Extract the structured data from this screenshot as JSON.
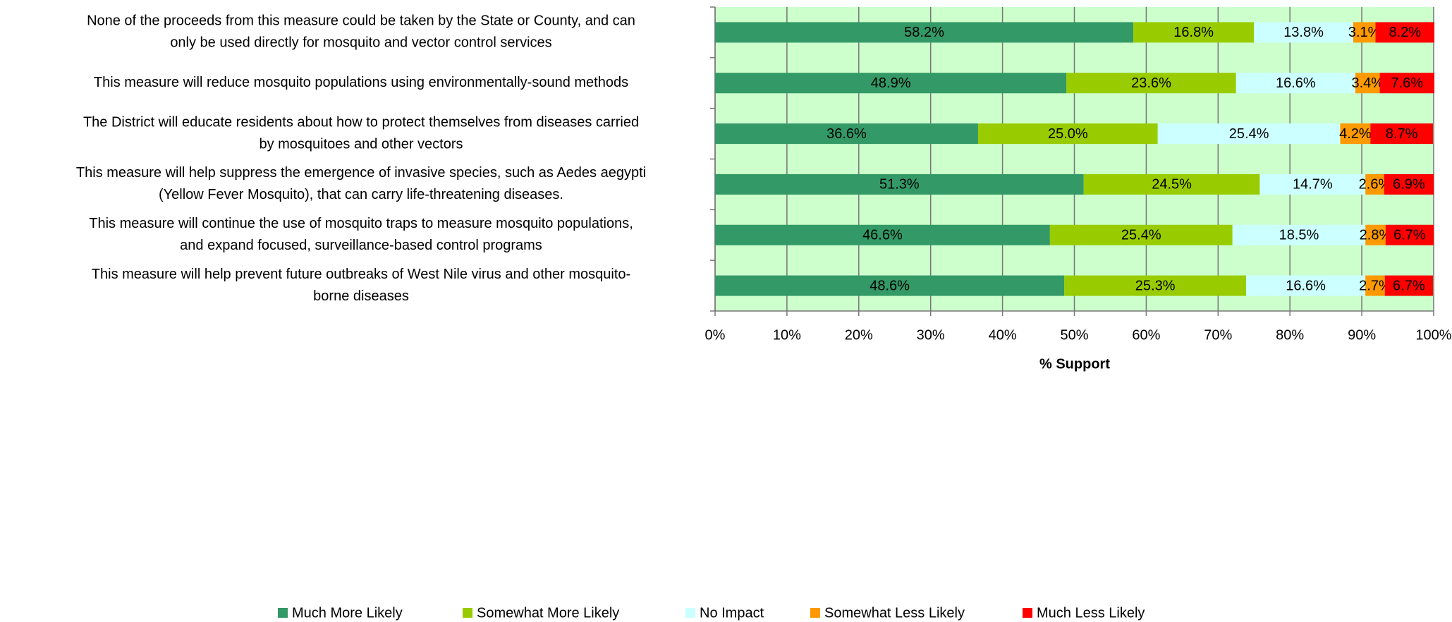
{
  "chart_data": {
    "type": "stacked_bar_horizontal",
    "categories": [
      [
        "None of the proceeds from this measure could be taken by the State or County, and can",
        "only be used directly for mosquito and vector control services"
      ],
      [
        "This measure will reduce mosquito populations using environmentally-sound methods"
      ],
      [
        "The District will educate residents about how to protect themselves from diseases carried",
        "by mosquitoes and other vectors"
      ],
      [
        "This measure will help suppress the emergence of invasive species, such as Aedes aegypti",
        "(Yellow Fever Mosquito), that can carry life-threatening diseases."
      ],
      [
        "This measure will continue the use of mosquito traps to measure mosquito populations,",
        "and expand focused, surveillance-based control programs"
      ],
      [
        "This measure will help prevent future outbreaks of West Nile virus and other mosquito-",
        "borne diseases"
      ]
    ],
    "series": [
      {
        "name": "Much More Likely",
        "color": "#339966",
        "values": [
          58.2,
          48.9,
          36.6,
          51.3,
          46.6,
          48.6
        ],
        "value_labels": [
          "58.2%",
          "48.9%",
          "36.6%",
          "51.3%",
          "46.6%",
          "48.6%"
        ]
      },
      {
        "name": "Somewhat More Likely",
        "color": "#99cc00",
        "values": [
          16.8,
          23.6,
          25.0,
          24.5,
          25.4,
          25.3
        ],
        "value_labels": [
          "16.8%",
          "23.6%",
          "25.0%",
          "24.5%",
          "25.4%",
          "25.3%"
        ]
      },
      {
        "name": "No Impact",
        "color": "#ccffff",
        "values": [
          13.8,
          16.6,
          25.4,
          14.7,
          18.5,
          16.6
        ],
        "value_labels": [
          "13.8%",
          "16.6%",
          "25.4%",
          "14.7%",
          "18.5%",
          "16.6%"
        ]
      },
      {
        "name": "Somewhat Less Likely",
        "color": "#ff9900",
        "values": [
          3.1,
          3.4,
          4.2,
          2.6,
          2.8,
          2.7
        ],
        "value_labels": [
          "3.1%",
          "3.4%",
          "4.2%",
          "2.6%",
          "2.8%",
          "2.7%"
        ]
      },
      {
        "name": "Much Less Likely",
        "color": "#ff0000",
        "values": [
          8.2,
          7.6,
          8.7,
          6.9,
          6.7,
          6.7
        ],
        "value_labels": [
          "8.2%",
          "7.6%",
          "8.7%",
          "6.9%",
          "6.7%",
          "6.7%"
        ]
      }
    ],
    "xlabel": "% Support",
    "xlim": [
      0,
      100
    ],
    "xticks": [
      {
        "value": 0,
        "label": "0%"
      },
      {
        "value": 10,
        "label": "10%"
      },
      {
        "value": 20,
        "label": "20%"
      },
      {
        "value": 30,
        "label": "30%"
      },
      {
        "value": 40,
        "label": "40%"
      },
      {
        "value": 50,
        "label": "50%"
      },
      {
        "value": 60,
        "label": "60%"
      },
      {
        "value": 70,
        "label": "70%"
      },
      {
        "value": 80,
        "label": "80%"
      },
      {
        "value": 90,
        "label": "90%"
      },
      {
        "value": 100,
        "label": "100%"
      }
    ],
    "grid": true,
    "legend": "bottom",
    "plot_background": "#ccffcc"
  }
}
